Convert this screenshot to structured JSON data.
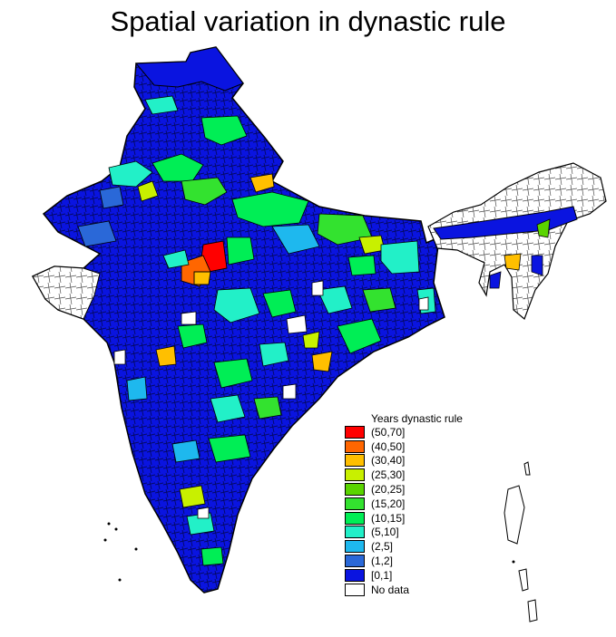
{
  "title": "Spatial variation in dynastic rule",
  "legend": {
    "title": "Years dynastic rule",
    "items": [
      {
        "label": "(50,70]",
        "color": "#ff0000"
      },
      {
        "label": "(40,50]",
        "color": "#ff6600"
      },
      {
        "label": "(30,40]",
        "color": "#ffbf00"
      },
      {
        "label": "(25,30]",
        "color": "#c8f000"
      },
      {
        "label": "(20,25]",
        "color": "#5ad400"
      },
      {
        "label": "(15,20]",
        "color": "#33e22f"
      },
      {
        "label": "(10,15]",
        "color": "#00ee55"
      },
      {
        "label": "(5,10]",
        "color": "#22f0c8"
      },
      {
        "label": "(2,5]",
        "color": "#1eb8ee"
      },
      {
        "label": "(1,2]",
        "color": "#2a68d8"
      },
      {
        "label": "[0,1]",
        "color": "#0a14e0"
      },
      {
        "label": "No data",
        "color": "#ffffff"
      }
    ]
  }
}
